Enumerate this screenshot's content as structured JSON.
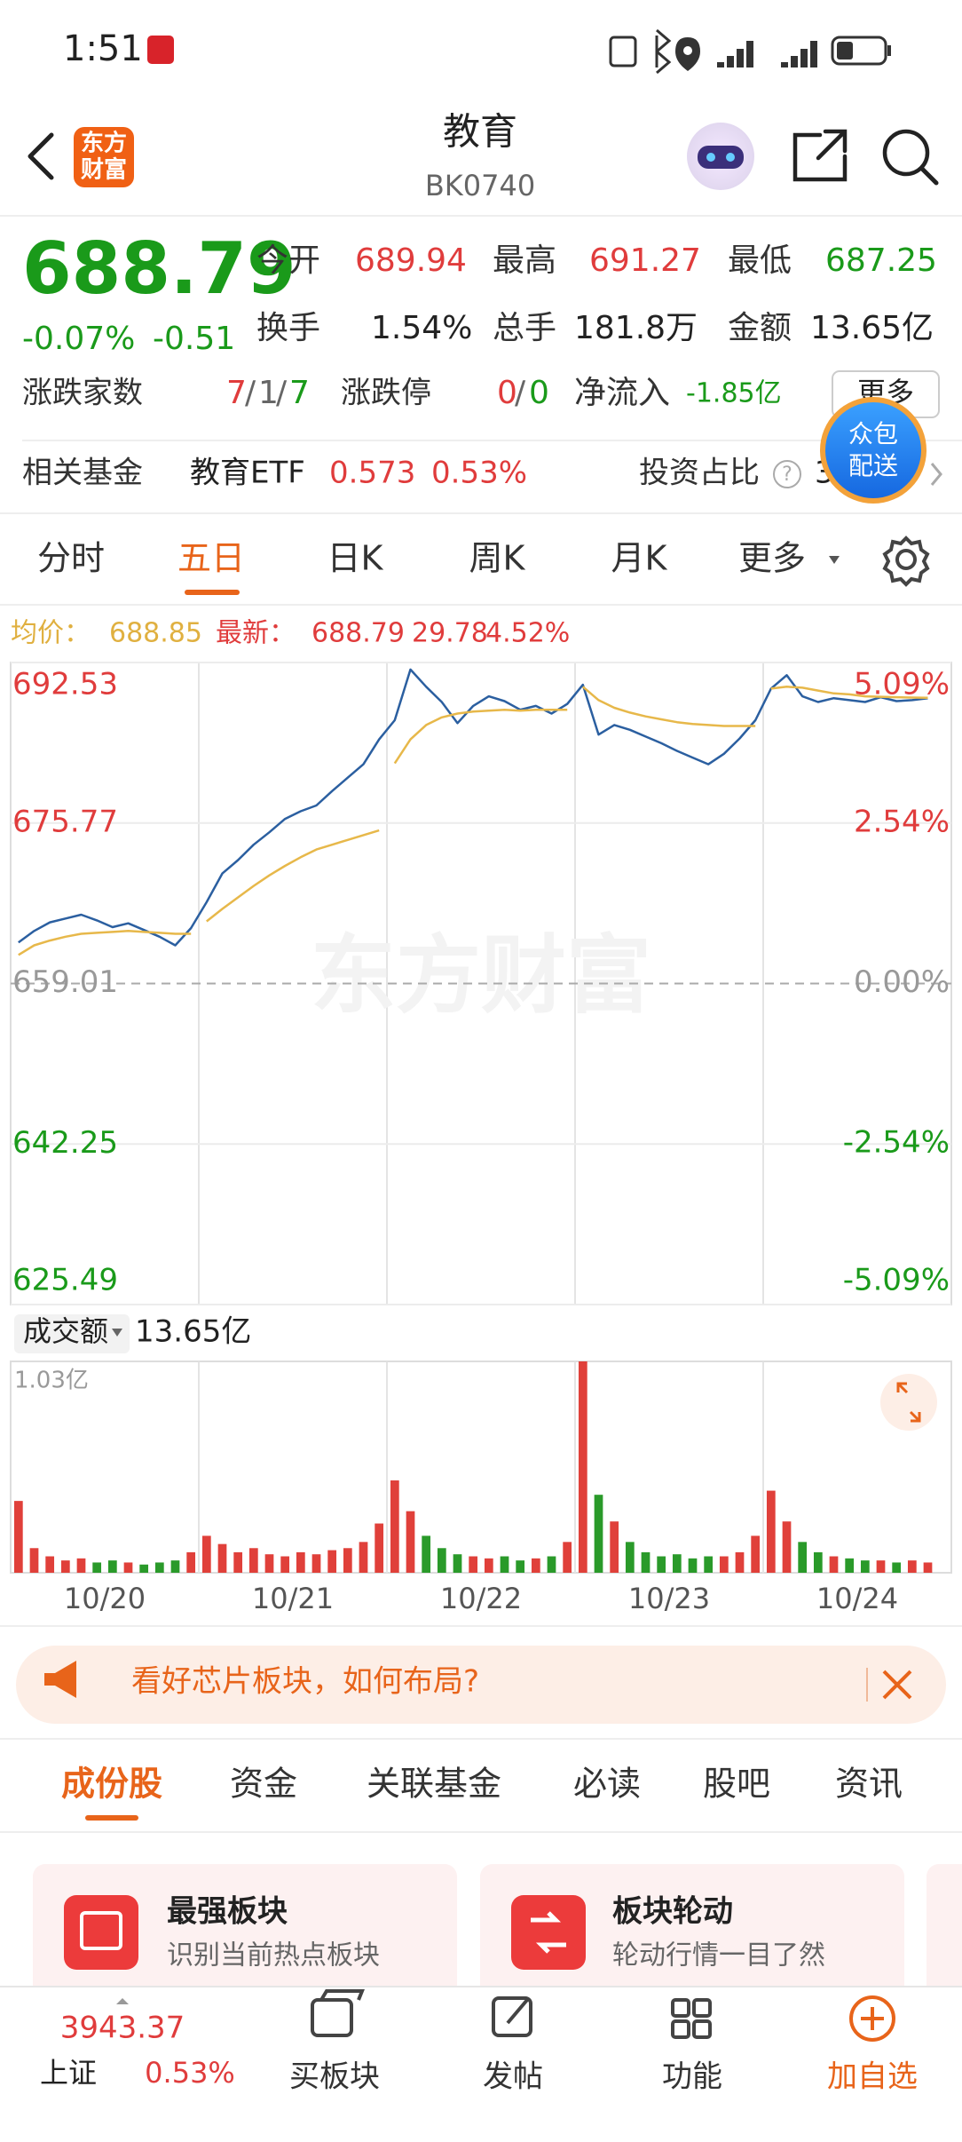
{
  "status_bar": {
    "time": "1:51"
  },
  "header": {
    "logo": [
      "东方",
      "财富"
    ],
    "title": "教育",
    "code": "BK0740"
  },
  "quote": {
    "price": "688.79",
    "change_pct": "-0.07%",
    "change": "-0.51",
    "fields": [
      {
        "label": "今开",
        "value": "689.94"
      },
      {
        "label": "最高",
        "value": "691.27"
      },
      {
        "label": "最低",
        "value": "687.25"
      },
      {
        "label": "换手",
        "value": "1.54%"
      },
      {
        "label": "总手",
        "value": "181.8万"
      },
      {
        "label": "金额",
        "value": "13.65亿"
      }
    ],
    "breadth_label": "涨跌家数",
    "breadth": [
      "7",
      "1",
      "7"
    ],
    "limit_label": "涨跌停",
    "limit": [
      "0",
      "0"
    ],
    "net_inflow_label": "净流入",
    "net_inflow": "-1.85亿",
    "more": "更多"
  },
  "fund": {
    "label": "相关基金",
    "name": "教育ETF",
    "price": "0.573",
    "change": "0.53%",
    "ratio_label": "投资占比",
    "ratio": "3",
    "bubble": [
      "众包",
      "配送"
    ]
  },
  "tabs": [
    "分时",
    "五日",
    "日K",
    "周K",
    "月K",
    "更多"
  ],
  "chart_header": {
    "avg_label": "均价：",
    "avg": "688.85",
    "latest_label": "最新：",
    "latest": "688.79",
    "change": "29.78",
    "change_pct": "4.52%"
  },
  "chart_data": [
    {
      "type": "line",
      "watermark": "东方财富",
      "ylim": [
        625.49,
        692.53
      ],
      "yticks": [
        692.53,
        675.77,
        659.01,
        642.25,
        625.49
      ],
      "y2lim": [
        -5.09,
        5.09
      ],
      "y2ticks": [
        {
          "value": 5.09,
          "label": "5.09%"
        },
        {
          "value": 2.54,
          "label": "2.54%"
        },
        {
          "value": 0,
          "label": "0.00%"
        },
        {
          "value": -2.54,
          "label": "-2.54%"
        },
        {
          "value": -5.09,
          "label": "-5.09%"
        }
      ],
      "series": [
        {
          "color": "#2b5fa0",
          "values": [
            [
              663.3,
              664.5,
              665.4,
              665.8,
              666.2,
              665.6,
              664.9,
              665.3,
              664.6,
              663.9,
              663.0,
              664.8
            ],
            [
              667.5,
              670.5,
              671.9,
              673.5,
              674.8,
              676.2,
              677.0,
              677.6,
              679.1,
              680.5,
              681.9,
              684.5
            ],
            [
              686.5,
              691.8,
              690.0,
              688.4,
              686.2,
              688.0,
              689.0,
              688.5,
              687.6,
              688.0,
              687.2,
              688.2
            ],
            [
              690.2,
              685.0,
              686.0,
              685.5,
              684.8,
              684.1,
              683.3,
              682.6,
              681.9,
              683.0,
              684.6,
              686.5
            ],
            [
              689.8,
              691.2,
              689.0,
              688.4,
              688.8,
              688.6,
              688.4,
              688.9,
              688.5,
              688.6,
              688.79,
              null
            ]
          ]
        },
        {
          "color": "#e7b84a",
          "values": [
            [
              662.0,
              663.0,
              663.5,
              663.9,
              664.2,
              664.3,
              664.4,
              664.5,
              664.4,
              664.3,
              664.2,
              664.2
            ],
            [
              665.5,
              666.8,
              668.0,
              669.2,
              670.3,
              671.3,
              672.2,
              673.0,
              673.5,
              674.0,
              674.5,
              675.0
            ],
            [
              682.0,
              684.5,
              686.0,
              686.8,
              687.2,
              687.4,
              687.5,
              687.6,
              687.5,
              687.6,
              687.6,
              687.6
            ],
            [
              690.0,
              688.6,
              687.8,
              687.3,
              686.9,
              686.6,
              686.3,
              686.1,
              686.0,
              685.9,
              685.9,
              685.9
            ],
            [
              689.8,
              690.0,
              689.9,
              689.6,
              689.3,
              689.2,
              689.0,
              688.95,
              688.9,
              688.87,
              688.85,
              null
            ]
          ]
        }
      ]
    },
    {
      "type": "bar",
      "label": "成交额",
      "total": "13.65亿",
      "ylim": [
        0,
        1.03
      ],
      "yticks": [
        {
          "value": 1.03,
          "label": "1.03亿"
        }
      ],
      "categories": [
        "10/20",
        "10/21",
        "10/22",
        "10/23",
        "10/24"
      ],
      "values": [
        [
          0.35,
          0.12,
          0.08,
          0.06,
          0.07,
          0.05,
          0.06,
          0.05,
          0.04,
          0.05,
          0.06,
          0.1
        ],
        [
          0.18,
          0.14,
          0.1,
          0.12,
          0.09,
          0.08,
          0.1,
          0.09,
          0.11,
          0.12,
          0.15,
          0.24
        ],
        [
          0.45,
          0.3,
          0.18,
          0.12,
          0.09,
          0.08,
          0.07,
          0.08,
          0.06,
          0.07,
          0.08,
          0.15
        ],
        [
          1.03,
          0.38,
          0.25,
          0.15,
          0.1,
          0.08,
          0.09,
          0.07,
          0.08,
          0.08,
          0.1,
          0.18
        ],
        [
          0.4,
          0.25,
          0.15,
          0.1,
          0.08,
          0.07,
          0.06,
          0.06,
          0.05,
          0.06,
          0.05,
          null
        ]
      ]
    }
  ],
  "banner": {
    "text": "看好芯片板块，如何布局?"
  },
  "sub_tabs": [
    "成份股",
    "资金",
    "关联基金",
    "必读",
    "股吧",
    "资讯"
  ],
  "cards": [
    {
      "title": "最强板块",
      "subtitle": "识别当前热点板块"
    },
    {
      "title": "板块轮动",
      "subtitle": "轮动行情一目了然"
    }
  ],
  "bottom_bar": {
    "index_value": "3943.37",
    "index_name": "上证",
    "index_change": "0.53%",
    "items": [
      "买板块",
      "发帖",
      "功能",
      "加自选"
    ]
  }
}
